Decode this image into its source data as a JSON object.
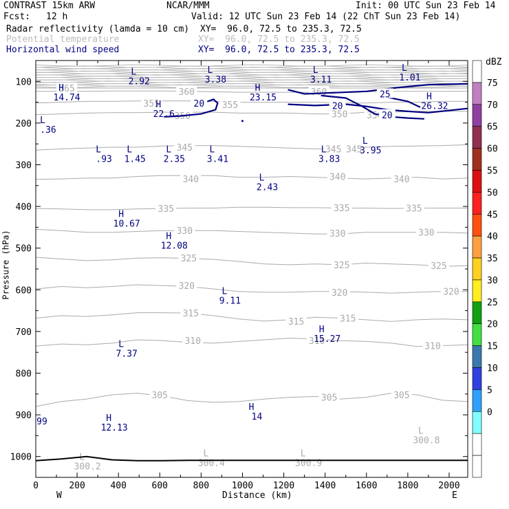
{
  "header": {
    "model": "CONTRAST 15km ARW",
    "org": "NCAR/MMM",
    "init": "Init: 00 UTC Sun 23 Feb 14",
    "fcst_label": "Fcst:",
    "fcst_value": "12 h",
    "valid": "Valid: 12 UTC Sun 23 Feb 14 (22 ChT Sun 23 Feb 14)"
  },
  "fields": [
    {
      "name": "Radar reflectivity (lamda = 10 cm)",
      "xy": "XY=  96.0, 72.5 to 235.3, 72.5",
      "color": "#000000"
    },
    {
      "name": "Potential temperature",
      "xy": "XY=  96.0, 72.5 to 235.3, 72.5",
      "color": "#bbbbbb"
    },
    {
      "name": "Horizontal wind speed",
      "xy": "XY=  96.0, 72.5 to 235.3, 72.5",
      "color": "#000080"
    }
  ],
  "chart_data": {
    "type": "cross-section",
    "xlabel": "Distance (km)",
    "ylabel": "Pressure (hPa)",
    "xlim": [
      0,
      2090
    ],
    "ylim": [
      1050,
      50
    ],
    "x_ticks": [
      0,
      200,
      400,
      600,
      800,
      1000,
      1200,
      1400,
      1600,
      1800,
      2000
    ],
    "y_ticks": [
      100,
      200,
      300,
      400,
      500,
      600,
      700,
      800,
      900,
      1000
    ],
    "left_end": "W",
    "right_end": "E",
    "theta_contours": [
      {
        "label": "305",
        "p": [
          880,
          868,
          862,
          852,
          848,
          855,
          866,
          870,
          868,
          862,
          858,
          856,
          862,
          858,
          848,
          852,
          865,
          868
        ]
      },
      {
        "label": "310",
        "p": [
          735,
          730,
          732,
          728,
          720,
          722,
          726,
          728,
          724,
          720,
          716,
          718,
          722,
          724,
          728,
          736,
          734,
          732
        ]
      },
      {
        "label": "315",
        "p": [
          668,
          662,
          664,
          660,
          655,
          655,
          656,
          662,
          670,
          675,
          672,
          666,
          668,
          672,
          676,
          672,
          670,
          672
        ]
      },
      {
        "label": "320",
        "p": [
          598,
          592,
          595,
          592,
          588,
          590,
          592,
          598,
          604,
          606,
          606,
          604,
          604,
          606,
          608,
          606,
          604,
          604
        ]
      },
      {
        "label": "325",
        "p": [
          522,
          526,
          530,
          528,
          524,
          523,
          525,
          527,
          532,
          538,
          540,
          538,
          540,
          536,
          538,
          540,
          544,
          542
        ]
      },
      {
        "label": "330",
        "p": [
          455,
          458,
          462,
          462,
          460,
          458,
          458,
          458,
          460,
          462,
          464,
          466,
          466,
          462,
          462,
          462,
          462,
          464
        ]
      },
      {
        "label": "335",
        "p": [
          405,
          406,
          408,
          408,
          406,
          405,
          404,
          404,
          402,
          402,
          403,
          403,
          404,
          404,
          405,
          404,
          404,
          404
        ]
      },
      {
        "label": "340",
        "p": [
          335,
          334,
          332,
          332,
          328,
          326,
          326,
          326,
          330,
          330,
          328,
          330,
          332,
          334,
          332,
          330,
          334,
          332
        ]
      },
      {
        "label": "345",
        "p": [
          265,
          262,
          260,
          258,
          258,
          255,
          254,
          254,
          256,
          258,
          260,
          262,
          262,
          258,
          256,
          255,
          254,
          252
        ]
      },
      {
        "label": "350",
        "p": [
          180,
          178,
          176,
          175,
          175,
          174,
          174,
          174,
          176,
          176,
          176,
          178,
          178,
          174,
          174,
          172,
          172,
          172
        ]
      },
      {
        "label": "355",
        "p": [
          152,
          150,
          148,
          148,
          147,
          147,
          147,
          148,
          150,
          150,
          150,
          150,
          152,
          152,
          150,
          150,
          148,
          148
        ]
      },
      {
        "label": "360",
        "p": [
          124,
          124,
          124,
          123,
          123,
          123,
          124,
          125,
          126,
          126,
          126,
          126,
          126,
          125,
          124,
          124,
          124,
          124
        ]
      },
      {
        "label": "365",
        "p": [
          116,
          116,
          116,
          116,
          116,
          116,
          116,
          116,
          116,
          116,
          116,
          116,
          116,
          116,
          116,
          116,
          116,
          116
        ]
      }
    ],
    "theta_labels": [
      {
        "text": "365",
        "x": 150,
        "p": 116
      },
      {
        "text": "360",
        "x": 730,
        "p": 124
      },
      {
        "text": "355",
        "x": 560,
        "p": 152
      },
      {
        "text": "355",
        "x": 940,
        "p": 156
      },
      {
        "text": "350",
        "x": 710,
        "p": 182
      },
      {
        "text": "350",
        "x": 1470,
        "p": 178
      },
      {
        "text": "350",
        "x": 1640,
        "p": 180
      },
      {
        "text": "360",
        "x": 1370,
        "p": 124
      },
      {
        "text": "345",
        "x": 720,
        "p": 258
      },
      {
        "text": "345",
        "x": 1440,
        "p": 262
      },
      {
        "text": "345",
        "x": 1540,
        "p": 262
      },
      {
        "text": "340",
        "x": 750,
        "p": 334
      },
      {
        "text": "340",
        "x": 1460,
        "p": 328
      },
      {
        "text": "340",
        "x": 1770,
        "p": 334
      },
      {
        "text": "335",
        "x": 630,
        "p": 405
      },
      {
        "text": "335",
        "x": 1480,
        "p": 403
      },
      {
        "text": "335",
        "x": 1830,
        "p": 404
      },
      {
        "text": "330",
        "x": 720,
        "p": 458
      },
      {
        "text": "330",
        "x": 1460,
        "p": 464
      },
      {
        "text": "330",
        "x": 1890,
        "p": 462
      },
      {
        "text": "325",
        "x": 740,
        "p": 524
      },
      {
        "text": "325",
        "x": 1480,
        "p": 540
      },
      {
        "text": "325",
        "x": 1950,
        "p": 542
      },
      {
        "text": "320",
        "x": 730,
        "p": 590
      },
      {
        "text": "320",
        "x": 1470,
        "p": 606
      },
      {
        "text": "320",
        "x": 2010,
        "p": 604
      },
      {
        "text": "315",
        "x": 750,
        "p": 656
      },
      {
        "text": "315",
        "x": 1260,
        "p": 675
      },
      {
        "text": "315",
        "x": 1510,
        "p": 668
      },
      {
        "text": "310",
        "x": 760,
        "p": 722
      },
      {
        "text": "310",
        "x": 1360,
        "p": 722
      },
      {
        "text": "310",
        "x": 1920,
        "p": 734
      },
      {
        "text": "305",
        "x": 600,
        "p": 852
      },
      {
        "text": "305",
        "x": 1420,
        "p": 858
      },
      {
        "text": "305",
        "x": 1770,
        "p": 852
      }
    ],
    "wind_contours": [
      {
        "label": "20",
        "points": [
          [
            620,
            185
          ],
          [
            700,
            183
          ],
          [
            800,
            178
          ],
          [
            870,
            168
          ],
          [
            880,
            152
          ],
          [
            860,
            143
          ],
          [
            820,
            150
          ],
          [
            780,
            160
          ]
        ]
      },
      {
        "label": "25",
        "points": [
          [
            1220,
            120
          ],
          [
            1300,
            130
          ],
          [
            1450,
            127
          ],
          [
            1600,
            124
          ],
          [
            1750,
            115
          ],
          [
            1900,
            108
          ],
          [
            2090,
            106
          ]
        ]
      },
      {
        "label": "20",
        "points": [
          [
            1220,
            155
          ],
          [
            1350,
            158
          ],
          [
            1500,
            155
          ],
          [
            1600,
            160
          ],
          [
            1700,
            168
          ],
          [
            1800,
            172
          ],
          [
            1900,
            175
          ],
          [
            2090,
            165
          ]
        ]
      },
      {
        "label": "20",
        "points": [
          [
            1380,
            134
          ],
          [
            1500,
            140
          ],
          [
            1580,
            160
          ],
          [
            1640,
            178
          ],
          [
            1720,
            185
          ],
          [
            1800,
            188
          ],
          [
            1880,
            190
          ]
        ]
      },
      {
        "label": "",
        "points": [
          [
            1700,
            138
          ],
          [
            1800,
            148
          ],
          [
            1860,
            162
          ]
        ]
      }
    ],
    "wind_labels": [
      {
        "text": "20",
        "x": 790,
        "p": 152
      },
      {
        "text": "20",
        "x": 1460,
        "p": 158
      },
      {
        "text": "25",
        "x": 1690,
        "p": 130
      },
      {
        "text": "20",
        "x": 1700,
        "p": 180
      }
    ],
    "hl_markers": [
      {
        "letter": "L",
        "value": "2.92",
        "x": 500,
        "p": 84,
        "color": "#000080"
      },
      {
        "letter": "L",
        "value": "3.38",
        "x": 870,
        "p": 80,
        "color": "#000080"
      },
      {
        "letter": "L",
        "value": "3.11",
        "x": 1380,
        "p": 80,
        "color": "#000080"
      },
      {
        "letter": "L",
        "value": "1.01",
        "x": 1810,
        "p": 75,
        "color": "#000080"
      },
      {
        "letter": "H",
        "value": "14.74",
        "x": 150,
        "p": 123,
        "color": "#000080"
      },
      {
        "letter": "H",
        "value": "23.15",
        "x": 1100,
        "p": 123,
        "color": "#000080"
      },
      {
        "letter": "H",
        "value": "26.32",
        "x": 1930,
        "p": 143,
        "color": "#000080"
      },
      {
        "letter": "H",
        "value": "22.6",
        "x": 620,
        "p": 162,
        "color": "#000080"
      },
      {
        "letter": "L",
        "value": ".36",
        "x": 60,
        "p": 200,
        "color": "#000080"
      },
      {
        "letter": "L",
        "value": ".93",
        "x": 330,
        "p": 270,
        "color": "#000080"
      },
      {
        "letter": "L",
        "value": "1.45",
        "x": 480,
        "p": 270,
        "color": "#000080"
      },
      {
        "letter": "L",
        "value": "2.35",
        "x": 670,
        "p": 270,
        "color": "#000080"
      },
      {
        "letter": "L",
        "value": "3.41",
        "x": 880,
        "p": 270,
        "color": "#000080"
      },
      {
        "letter": "L",
        "value": "3.83",
        "x": 1420,
        "p": 270,
        "color": "#000080"
      },
      {
        "letter": "L",
        "value": "3.95",
        "x": 1620,
        "p": 250,
        "color": "#000080"
      },
      {
        "letter": "L",
        "value": "2.43",
        "x": 1120,
        "p": 338,
        "color": "#000080"
      },
      {
        "letter": "H",
        "value": "10.67",
        "x": 440,
        "p": 425,
        "color": "#000080"
      },
      {
        "letter": "H",
        "value": "12.08",
        "x": 670,
        "p": 478,
        "color": "#000080"
      },
      {
        "letter": "L",
        "value": "9.11",
        "x": 940,
        "p": 610,
        "color": "#000080"
      },
      {
        "letter": "H",
        "value": "15.27",
        "x": 1410,
        "p": 702,
        "color": "#000080"
      },
      {
        "letter": "L",
        "value": "7.37",
        "x": 440,
        "p": 737,
        "color": "#000080"
      },
      {
        "letter": "H",
        "value": "14",
        "x": 1070,
        "p": 888,
        "color": "#000080"
      },
      {
        "letter": "H",
        "value": "12.13",
        "x": 380,
        "p": 915,
        "color": "#000080"
      },
      {
        "letter": "",
        "value": "99",
        "x": 30,
        "p": 900,
        "color": "#000080"
      },
      {
        "letter": "L",
        "value": "300.8",
        "x": 1890,
        "p": 945,
        "color": "#aaaaaa"
      },
      {
        "letter": "L",
        "value": "300.2",
        "x": 250,
        "p": 1008,
        "color": "#aaaaaa"
      },
      {
        "letter": "L",
        "value": "300.4",
        "x": 850,
        "p": 1000,
        "color": "#aaaaaa"
      },
      {
        "letter": "L",
        "value": "300.9",
        "x": 1320,
        "p": 1000,
        "color": "#aaaaaa"
      }
    ],
    "terrain_p": [
      1010,
      1006,
      1000,
      1008,
      1010,
      1010,
      1009,
      1009,
      1009,
      1009,
      1009,
      1009,
      1009,
      1009,
      1009,
      1009,
      1009,
      1009
    ],
    "dot": {
      "x": 1000,
      "p": 195
    },
    "colorbar": {
      "unit": "dBZ",
      "labels": [
        "75",
        "70",
        "65",
        "60",
        "55",
        "50",
        "45",
        "40",
        "35",
        "30",
        "25",
        "20",
        "15",
        "10",
        "5",
        "0"
      ],
      "colors": [
        "#ffffff",
        "#c080c0",
        "#9040a0",
        "#903050",
        "#a03020",
        "#dd1010",
        "#ff2020",
        "#ff5010",
        "#ffa040",
        "#ffd020",
        "#ffee20",
        "#10a010",
        "#40e040",
        "#3a78b0",
        "#3040e0",
        "#30a0ff",
        "#80ffff",
        "#ffffff",
        "#ffffff"
      ]
    }
  }
}
